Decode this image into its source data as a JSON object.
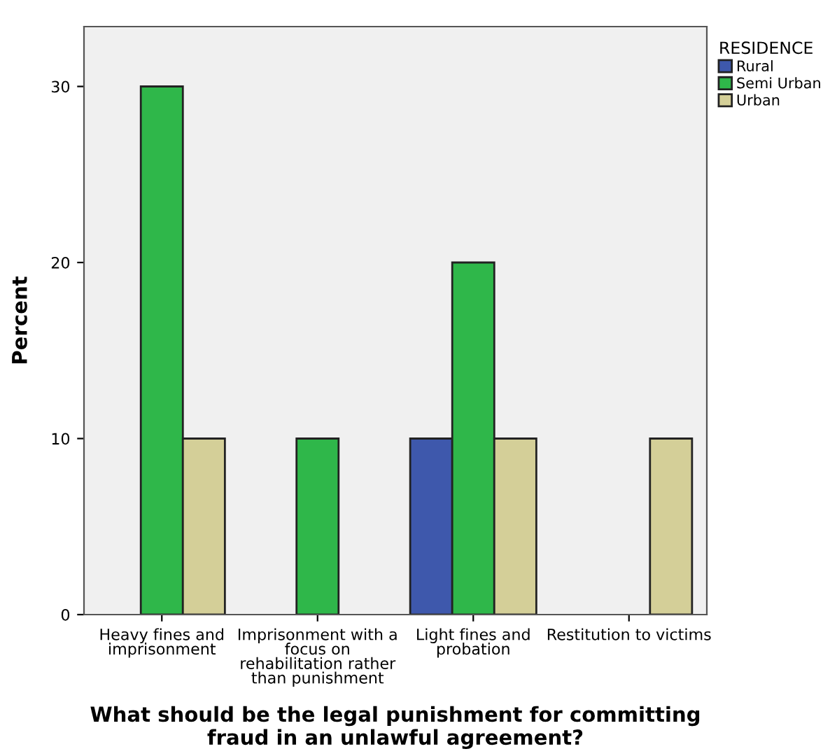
{
  "chart_data": {
    "type": "bar",
    "categories": [
      "Heavy fines and\nimprisonment",
      "Imprisonment with a\nfocus on\nrehabilitation rather\nthan punishment",
      "Light fines and\nprobation",
      "Restitution to victims"
    ],
    "series": [
      {
        "name": "Rural",
        "color": "#3e58ac",
        "values": [
          0,
          0,
          10,
          0
        ]
      },
      {
        "name": "Semi Urban",
        "color": "#2fb74a",
        "values": [
          30,
          10,
          20,
          0
        ]
      },
      {
        "name": "Urban",
        "color": "#d4cf98",
        "values": [
          10,
          0,
          10,
          10
        ]
      }
    ],
    "xlabel": "What should be the legal punishment for committing\nfraud in an unlawful agreement?",
    "ylabel": "Percent",
    "legend_title": "RESIDENCE",
    "legend": "top right",
    "ylim": [
      0,
      33.4
    ],
    "yticks": [
      0,
      10,
      20,
      30
    ],
    "grid": false
  }
}
